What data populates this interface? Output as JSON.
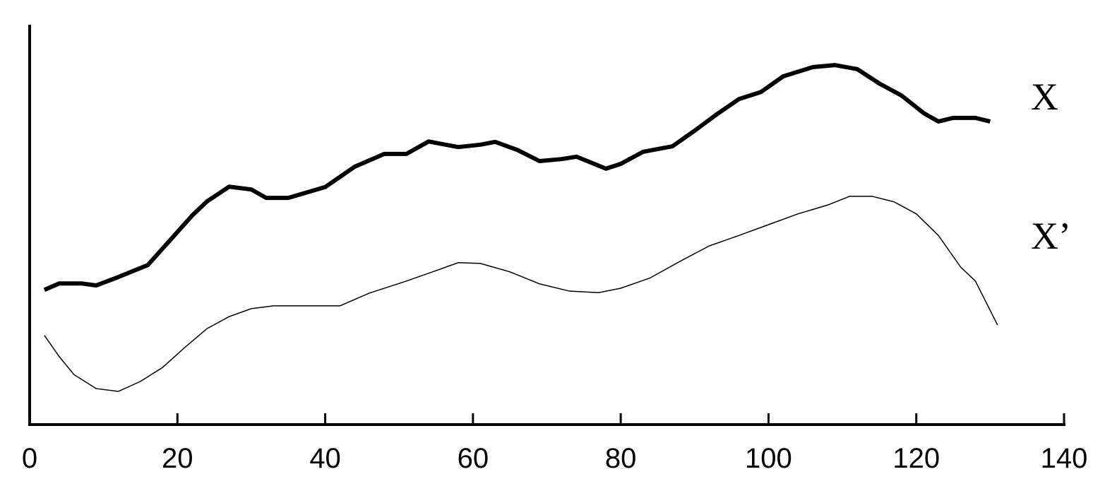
{
  "chart_data": {
    "type": "line",
    "xlim": [
      0,
      140
    ],
    "xticks": [
      0,
      20,
      40,
      60,
      80,
      100,
      120,
      140
    ],
    "ylim": [
      0,
      100
    ],
    "grid": false,
    "series": [
      {
        "name": "X",
        "color": "#000000",
        "x": [
          2,
          4,
          7,
          9,
          12,
          16,
          19,
          22,
          24,
          27,
          30,
          32,
          35,
          40,
          44,
          48,
          51,
          54,
          58,
          61,
          63,
          66,
          69,
          72,
          74,
          78,
          80,
          83,
          87,
          90,
          93,
          96,
          99,
          102,
          106,
          109,
          112,
          115,
          118,
          121,
          123,
          125,
          128,
          130
        ],
        "values": [
          33.7,
          35.3,
          35.3,
          34.8,
          36.9,
          39.9,
          46.1,
          52.3,
          55.8,
          59.5,
          58.8,
          56.7,
          56.7,
          59.4,
          64.5,
          67.7,
          67.7,
          70.8,
          69.4,
          70.0,
          70.7,
          68.7,
          65.9,
          66.4,
          67.0,
          64.0,
          65.2,
          68.2,
          69.6,
          73.5,
          77.6,
          81.4,
          83.2,
          87.1,
          89.4,
          89.9,
          88.9,
          85.3,
          82.3,
          77.9,
          75.8,
          76.7,
          76.7,
          75.8
        ]
      },
      {
        "name": "X’",
        "color": "#000000",
        "x": [
          2,
          4,
          6,
          9,
          12,
          15,
          18,
          21,
          24,
          27,
          30,
          33,
          36,
          42,
          46,
          51,
          55,
          58,
          61,
          65,
          69,
          73,
          77,
          80,
          84,
          88,
          92,
          96,
          100,
          104,
          108,
          111,
          114,
          117,
          120,
          123,
          126,
          128,
          131
        ],
        "values": [
          22.3,
          17.0,
          12.5,
          9.0,
          8.3,
          10.8,
          14.3,
          19.3,
          24.0,
          27.0,
          29.0,
          29.7,
          29.7,
          29.7,
          32.9,
          35.9,
          38.5,
          40.5,
          40.3,
          38.2,
          35.2,
          33.4,
          33.0,
          34.1,
          36.7,
          40.8,
          44.7,
          47.3,
          50.0,
          52.7,
          54.9,
          57.1,
          57.1,
          55.7,
          52.7,
          47.3,
          39.4,
          35.9,
          24.9
        ]
      }
    ]
  }
}
